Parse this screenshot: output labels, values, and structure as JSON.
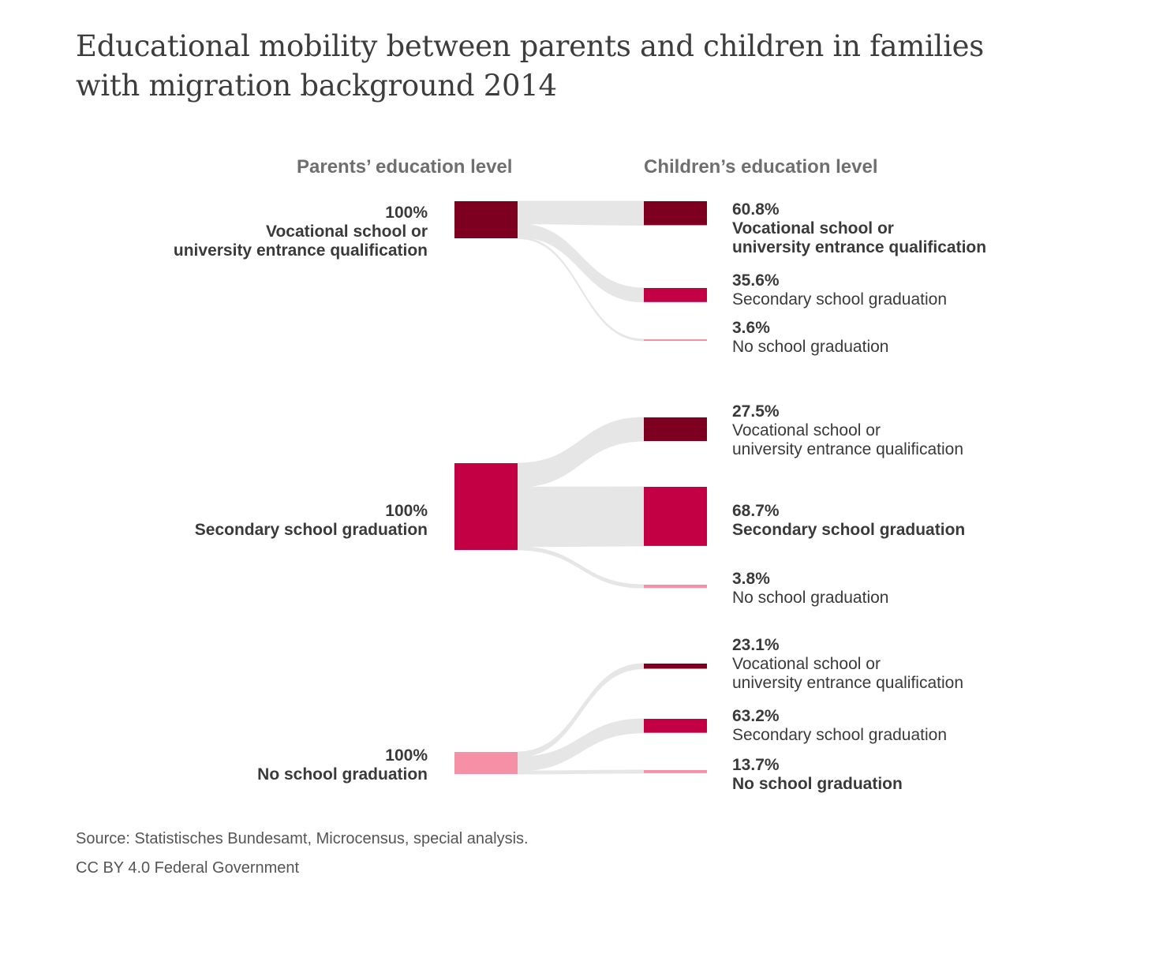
{
  "title": "Educational mobility between parents and children in families with migration background 2014",
  "source": "Source: Statistisches Bundesamt, Microcensus, special analysis.",
  "license": "CC BY 4.0 Federal Government",
  "colors": {
    "flow": "#e6e6e6",
    "label": "#3a3a3a",
    "Vocational school or university entrance qualification": "#7d0020",
    "Secondary school graduation": "#c30044",
    "No school graduation": "#f590a6"
  },
  "chart_data": {
    "type": "sankey",
    "left_header": "Parents’ education level",
    "right_header": "Children’s education level",
    "groups": [
      {
        "parent": {
          "value_label": "100%",
          "label_lines": [
            "Vocational school or",
            "university entrance qualification"
          ]
        },
        "flows": [
          {
            "to": "Vocational school or university entrance qualification",
            "value": 60.8,
            "value_label": "60.8%",
            "label_lines": [
              "Vocational school or",
              "university entrance qualification"
            ],
            "bold": true
          },
          {
            "to": "Secondary school graduation",
            "value": 35.6,
            "value_label": "35.6%",
            "label_lines": [
              "Secondary school graduation"
            ],
            "bold": false
          },
          {
            "to": "No school graduation",
            "value": 3.6,
            "value_label": "3.6%",
            "label_lines": [
              "No school graduation"
            ],
            "bold": false
          }
        ]
      },
      {
        "parent": {
          "value_label": "100%",
          "label_lines": [
            "Secondary school graduation"
          ]
        },
        "flows": [
          {
            "to": "Vocational school or university entrance qualification",
            "value": 27.5,
            "value_label": "27.5%",
            "label_lines": [
              "Vocational school or",
              "university entrance qualification"
            ],
            "bold": false
          },
          {
            "to": "Secondary school graduation",
            "value": 68.7,
            "value_label": "68.7%",
            "label_lines": [
              "Secondary school graduation"
            ],
            "bold": true
          },
          {
            "to": "No school graduation",
            "value": 3.8,
            "value_label": "3.8%",
            "label_lines": [
              "No school graduation"
            ],
            "bold": false
          }
        ]
      },
      {
        "parent": {
          "value_label": "100%",
          "label_lines": [
            "No school graduation"
          ]
        },
        "flows": [
          {
            "to": "Vocational school or university entrance qualification",
            "value": 23.1,
            "value_label": "23.1%",
            "label_lines": [
              "Vocational school or",
              "university entrance qualification"
            ],
            "bold": false
          },
          {
            "to": "Secondary school graduation",
            "value": 63.2,
            "value_label": "63.2%",
            "label_lines": [
              "Secondary school graduation"
            ],
            "bold": false
          },
          {
            "to": "No school graduation",
            "value": 13.7,
            "value_label": "13.7%",
            "label_lines": [
              "No school graduation"
            ],
            "bold": true
          }
        ]
      }
    ]
  }
}
